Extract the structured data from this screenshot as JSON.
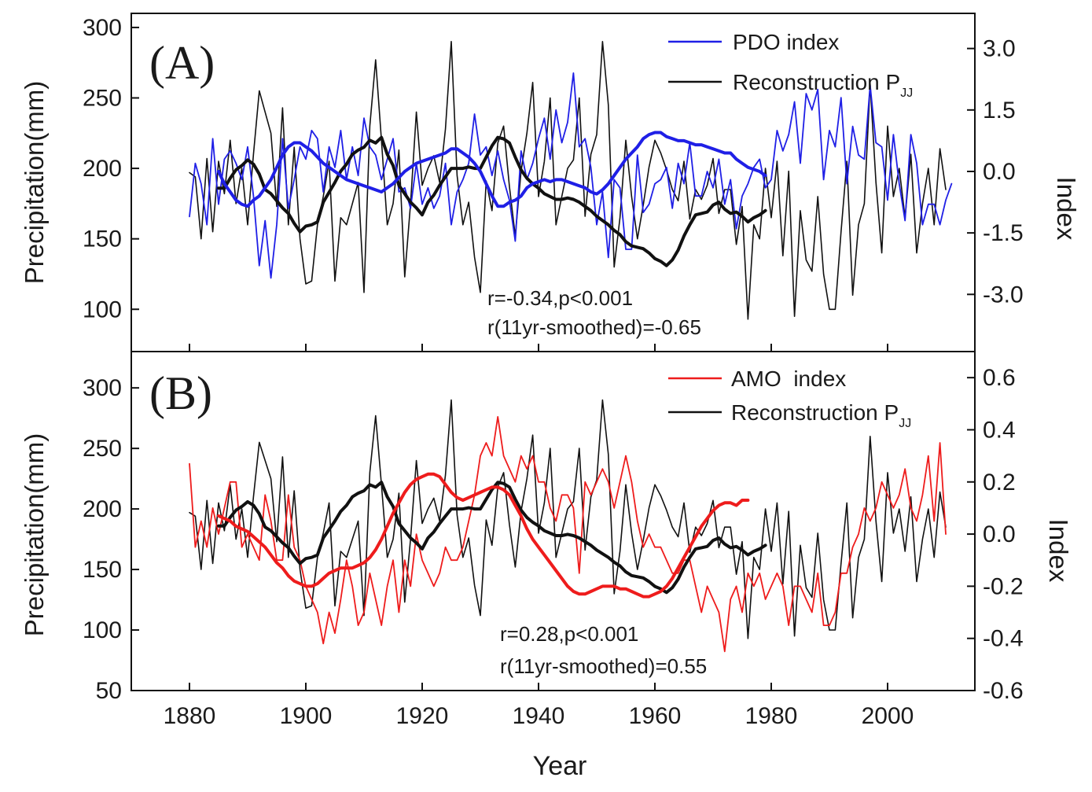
{
  "chart_data": [
    {
      "type": "line",
      "panel_label": "(A)",
      "xlabel": "",
      "ylabel_left": "Precipitation(mm)",
      "ylabel_right": "Index",
      "xlim": [
        1870,
        2015
      ],
      "ylim_left": [
        70,
        310
      ],
      "ylim_right": [
        -4.395,
        3.857
      ],
      "yticks_left": [
        100,
        150,
        200,
        250,
        300
      ],
      "yticks_right": [
        -3.0,
        -1.5,
        0.0,
        1.5,
        3.0
      ],
      "yticks_right_labels": [
        "-3.0",
        "-1.5",
        "0.0",
        "1.5",
        "3.0"
      ],
      "legend": [
        {
          "label": "PDO index",
          "color": "#1f1fe6"
        },
        {
          "label": "Reconstruction P",
          "subscript": "JJ",
          "color": "#111111"
        }
      ],
      "annotations": [
        "r=-0.34,p<0.001",
        "r(11yr-smoothed)=-0.65"
      ],
      "series": [
        {
          "name": "Reconstruction P_JJ",
          "axis": "left",
          "color": "#111111",
          "width": 1.6,
          "x_start": 1880,
          "values": [
            197,
            194,
            150,
            207,
            155,
            205,
            182,
            220,
            175,
            200,
            160,
            210,
            255,
            240,
            225,
            173,
            243,
            160,
            215,
            150,
            118,
            120,
            160,
            180,
            205,
            120,
            165,
            160,
            175,
            190,
            112,
            230,
            277,
            220,
            160,
            175,
            213,
            123,
            175,
            240,
            188,
            200,
            209,
            190,
            228,
            290,
            195,
            160,
            176,
            137,
            112,
            191,
            170,
            218,
            230,
            187,
            152,
            198,
            225,
            261,
            180,
            205,
            250,
            160,
            180,
            200,
            206,
            250,
            166,
            210,
            224,
            290,
            245,
            130,
            165,
            220,
            180,
            150,
            174,
            201,
            220,
            211,
            199,
            185,
            177,
            205,
            164,
            185,
            178,
            188,
            207,
            168,
            185,
            185,
            146,
            173,
            93,
            160,
            150,
            200,
            165,
            205,
            138,
            198,
            95,
            170,
            135,
            127,
            180,
            125,
            100,
            100,
            155,
            205,
            110,
            160,
            175,
            260,
            190,
            140,
            230,
            180,
            200,
            165,
            210,
            140,
            175,
            200,
            160,
            214,
            185
          ]
        },
        {
          "name": "PDO index",
          "axis": "right",
          "color": "#1f1fe6",
          "width": 1.8,
          "x_start": 1880,
          "values": [
            -1.1,
            0.2,
            -0.3,
            -1.3,
            0.8,
            -0.8,
            0.3,
            0.5,
            0.2,
            -0.2,
            0.6,
            -0.6,
            -2.3,
            -1.2,
            -2.6,
            -1.3,
            0.8,
            -0.9,
            -0.2,
            0.6,
            0.3,
            1.0,
            0.8,
            -0.5,
            0.6,
            0.1,
            1.0,
            -0.2,
            0.6,
            -0.1,
            1.3,
            0.6,
            0.4,
            -0.2,
            0.3,
            0.8,
            -0.5,
            -0.4,
            -0.9,
            0.2,
            -0.8,
            -0.4,
            -0.9,
            -0.6,
            0.2,
            -1.3,
            -0.5,
            -0.2,
            0.2,
            1.4,
            0.4,
            0.6,
            -0.1,
            0.5,
            -0.2,
            -0.7,
            -1.7,
            0.5,
            -0.2,
            0.2,
            0.8,
            1.3,
            0.3,
            1.5,
            0.7,
            1.2,
            2.4,
            0.6,
            0.8,
            0.1,
            -1.3,
            -0.5,
            -2.1,
            -0.2,
            -0.4,
            -1.9,
            -1.9,
            0.4,
            -1.0,
            -0.8,
            -0.3,
            -0.2,
            0.1,
            -0.9,
            0.2,
            -0.3,
            0.7,
            -0.6,
            -0.6,
            0.0,
            -0.4,
            0.3,
            -0.8,
            -0.2,
            -1.4,
            -0.6,
            -0.3,
            0.1,
            0.3,
            -0.4,
            -0.2,
            1.0,
            0.5,
            0.9,
            1.7,
            0.2,
            1.9,
            1.5,
            2.0,
            -0.2,
            1.0,
            0.6,
            1.8,
            -0.3,
            1.1,
            0.4,
            0.3,
            2.1,
            0.7,
            0.6,
            -0.7,
            0.9,
            -0.3,
            -1.2,
            0.9,
            0.2,
            -1.3,
            -0.8,
            -0.8,
            -1.3,
            -0.7,
            -0.3
          ]
        },
        {
          "name": "Reconstruction P_JJ (11yr smoothed)",
          "axis": "left",
          "color": "#111111",
          "width": 4,
          "x_start": 1885,
          "values": [
            186,
            186,
            193,
            199,
            202,
            206,
            203,
            196,
            185,
            182,
            177,
            172,
            168,
            161,
            155,
            159,
            160,
            162,
            176,
            183,
            190,
            198,
            203,
            210,
            213,
            215,
            220,
            218,
            222,
            210,
            202,
            188,
            182,
            176,
            172,
            167,
            176,
            181,
            188,
            194,
            200,
            200,
            200,
            201,
            200,
            200,
            208,
            216,
            222,
            221,
            218,
            208,
            199,
            193,
            189,
            186,
            182,
            180,
            178,
            178,
            179,
            178,
            176,
            173,
            170,
            166,
            163,
            160,
            156,
            153,
            148,
            145,
            144,
            143,
            140,
            136,
            134,
            131,
            135,
            142,
            152,
            160,
            167,
            168,
            169,
            174,
            176,
            171,
            168,
            169,
            166,
            162,
            165,
            167,
            170
          ]
        },
        {
          "name": "PDO index (11yr smoothed)",
          "axis": "right",
          "color": "#1f1fe6",
          "width": 4,
          "x_start": 1885,
          "values": [
            0.0,
            -0.3,
            -0.5,
            -0.7,
            -0.8,
            -0.85,
            -0.7,
            -0.6,
            -0.4,
            -0.2,
            0.1,
            0.4,
            0.6,
            0.7,
            0.7,
            0.6,
            0.5,
            0.35,
            0.2,
            0.1,
            0.0,
            -0.1,
            -0.2,
            -0.25,
            -0.3,
            -0.35,
            -0.4,
            -0.45,
            -0.5,
            -0.4,
            -0.3,
            -0.15,
            0.0,
            0.1,
            0.2,
            0.25,
            0.3,
            0.35,
            0.4,
            0.45,
            0.55,
            0.55,
            0.45,
            0.35,
            0.2,
            0.0,
            -0.3,
            -0.6,
            -0.85,
            -0.85,
            -0.75,
            -0.7,
            -0.6,
            -0.4,
            -0.3,
            -0.25,
            -0.2,
            -0.25,
            -0.2,
            -0.2,
            -0.25,
            -0.3,
            -0.35,
            -0.4,
            -0.5,
            -0.55,
            -0.45,
            -0.3,
            -0.1,
            0.1,
            0.3,
            0.45,
            0.6,
            0.8,
            0.9,
            0.95,
            0.95,
            0.85,
            0.8,
            0.75,
            0.75,
            0.7,
            0.65,
            0.65,
            0.6,
            0.55,
            0.5,
            0.45,
            0.45,
            0.3,
            0.2,
            0.1,
            0.05,
            0.0,
            -0.1
          ]
        }
      ]
    },
    {
      "type": "line",
      "panel_label": "(B)",
      "xlabel": "Year",
      "ylabel_left": "Precipitation(mm)",
      "ylabel_right": "Index",
      "xlim": [
        1870,
        2015
      ],
      "xticks": [
        1880,
        1900,
        1920,
        1940,
        1960,
        1980,
        2000
      ],
      "ylim_left": [
        50,
        330
      ],
      "ylim_right": [
        -0.6,
        0.7
      ],
      "yticks_left": [
        50,
        100,
        150,
        200,
        250,
        300
      ],
      "yticks_right": [
        -0.6,
        -0.4,
        -0.2,
        0.0,
        0.2,
        0.4,
        0.6
      ],
      "yticks_right_labels": [
        "-0.6",
        "-0.4",
        "-0.2",
        "0.0",
        "0.2",
        "0.4",
        "0.6"
      ],
      "legend": [
        {
          "label": "AMO  index",
          "color": "#ee1c1c"
        },
        {
          "label": "Reconstruction P",
          "subscript": "JJ",
          "color": "#111111"
        }
      ],
      "annotations": [
        "r=0.28,p<0.001",
        "r(11yr-smoothed)=0.55"
      ],
      "series": [
        {
          "name": "Reconstruction P_JJ",
          "axis": "left",
          "color": "#111111",
          "width": 1.6,
          "x_start": 1880,
          "values": [
            197,
            194,
            150,
            207,
            155,
            205,
            182,
            220,
            175,
            200,
            160,
            210,
            255,
            240,
            225,
            173,
            243,
            160,
            215,
            150,
            118,
            120,
            160,
            180,
            205,
            120,
            165,
            160,
            175,
            190,
            112,
            230,
            277,
            220,
            160,
            175,
            213,
            123,
            175,
            240,
            188,
            200,
            209,
            190,
            228,
            290,
            195,
            160,
            176,
            137,
            112,
            191,
            170,
            218,
            230,
            187,
            152,
            198,
            225,
            261,
            180,
            205,
            250,
            160,
            180,
            200,
            206,
            250,
            166,
            210,
            224,
            290,
            245,
            130,
            165,
            220,
            180,
            150,
            174,
            201,
            220,
            211,
            199,
            185,
            177,
            205,
            164,
            185,
            178,
            188,
            207,
            168,
            185,
            185,
            146,
            173,
            93,
            160,
            150,
            200,
            165,
            205,
            138,
            198,
            95,
            170,
            135,
            127,
            180,
            125,
            100,
            100,
            155,
            205,
            110,
            160,
            175,
            260,
            190,
            140,
            230,
            180,
            200,
            165,
            210,
            140,
            175,
            200,
            160,
            214,
            185
          ]
        },
        {
          "name": "AMO index",
          "axis": "right",
          "color": "#ee1c1c",
          "width": 1.8,
          "x_start": 1880,
          "values": [
            0.27,
            -0.05,
            0.05,
            -0.05,
            0.1,
            0.0,
            0.1,
            0.2,
            0.2,
            -0.05,
            0.0,
            -0.05,
            -0.1,
            0.15,
            0.05,
            -0.1,
            -0.1,
            0.15,
            -0.05,
            -0.1,
            -0.2,
            -0.25,
            -0.3,
            -0.42,
            -0.3,
            -0.38,
            -0.25,
            -0.1,
            -0.2,
            -0.35,
            -0.3,
            -0.15,
            -0.25,
            -0.35,
            -0.2,
            -0.1,
            -0.3,
            -0.1,
            -0.2,
            0.0,
            -0.1,
            -0.15,
            -0.2,
            -0.15,
            -0.05,
            -0.1,
            -0.1,
            -0.05,
            0.05,
            0.15,
            0.3,
            0.35,
            0.3,
            0.45,
            0.3,
            0.25,
            0.2,
            0.3,
            0.25,
            0.3,
            0.2,
            0.2,
            0.1,
            0.05,
            0.15,
            0.15,
            0.1,
            -0.15,
            0.2,
            0.15,
            0.2,
            0.25,
            0.2,
            0.1,
            0.2,
            0.3,
            0.2,
            0.05,
            -0.05,
            0.0,
            -0.05,
            -0.05,
            -0.1,
            -0.15,
            -0.15,
            -0.1,
            -0.1,
            -0.2,
            -0.3,
            -0.2,
            -0.25,
            -0.3,
            -0.45,
            -0.25,
            -0.2,
            -0.3,
            -0.15,
            -0.2,
            -0.15,
            -0.25,
            -0.2,
            -0.15,
            -0.2,
            -0.35,
            -0.2,
            -0.2,
            -0.25,
            -0.3,
            -0.15,
            -0.35,
            -0.35,
            -0.3,
            -0.15,
            -0.15,
            -0.05,
            0.0,
            0.1,
            0.05,
            0.1,
            0.2,
            0.15,
            0.1,
            0.15,
            0.25,
            0.1,
            0.05,
            0.15,
            0.3,
            0.05,
            0.35,
            0.0
          ]
        },
        {
          "name": "Reconstruction P_JJ (11yr smoothed)",
          "axis": "left",
          "color": "#111111",
          "width": 4,
          "x_start": 1885,
          "values": [
            186,
            186,
            193,
            199,
            202,
            206,
            203,
            196,
            185,
            182,
            177,
            172,
            168,
            161,
            155,
            159,
            160,
            162,
            176,
            183,
            190,
            198,
            203,
            210,
            213,
            215,
            220,
            218,
            222,
            210,
            202,
            188,
            182,
            176,
            172,
            167,
            176,
            181,
            188,
            194,
            200,
            200,
            200,
            201,
            200,
            200,
            208,
            216,
            222,
            221,
            218,
            208,
            199,
            193,
            189,
            186,
            182,
            180,
            178,
            178,
            179,
            178,
            176,
            173,
            170,
            166,
            163,
            160,
            156,
            153,
            148,
            145,
            144,
            143,
            140,
            136,
            134,
            131,
            135,
            142,
            152,
            160,
            167,
            168,
            169,
            174,
            176,
            171,
            168,
            169,
            166,
            162,
            165,
            167,
            170
          ]
        },
        {
          "name": "AMO index (11yr smoothed)",
          "axis": "right",
          "color": "#ee1c1c",
          "width": 4,
          "x_start": 1885,
          "values": [
            0.07,
            0.06,
            0.05,
            0.03,
            0.02,
            0.01,
            -0.01,
            -0.03,
            -0.05,
            -0.08,
            -0.11,
            -0.13,
            -0.16,
            -0.18,
            -0.19,
            -0.2,
            -0.2,
            -0.19,
            -0.17,
            -0.15,
            -0.14,
            -0.13,
            -0.13,
            -0.13,
            -0.12,
            -0.11,
            -0.09,
            -0.06,
            -0.02,
            0.03,
            0.08,
            0.12,
            0.16,
            0.19,
            0.21,
            0.22,
            0.23,
            0.23,
            0.22,
            0.19,
            0.16,
            0.14,
            0.13,
            0.14,
            0.15,
            0.16,
            0.17,
            0.18,
            0.18,
            0.17,
            0.15,
            0.11,
            0.07,
            0.02,
            -0.02,
            -0.05,
            -0.08,
            -0.11,
            -0.14,
            -0.17,
            -0.2,
            -0.22,
            -0.23,
            -0.23,
            -0.22,
            -0.21,
            -0.2,
            -0.2,
            -0.2,
            -0.21,
            -0.21,
            -0.22,
            -0.23,
            -0.24,
            -0.24,
            -0.23,
            -0.22,
            -0.2,
            -0.17,
            -0.13,
            -0.09,
            -0.05,
            -0.01,
            0.03,
            0.06,
            0.09,
            0.11,
            0.12,
            0.12,
            0.11,
            0.13,
            0.13
          ]
        }
      ]
    }
  ]
}
